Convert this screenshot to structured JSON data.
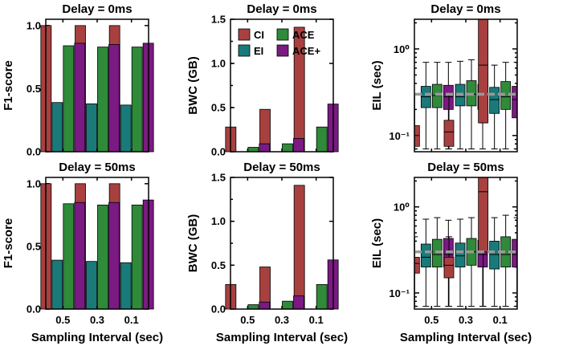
{
  "colors": {
    "CI": "#a84040",
    "EI": "#1a7a7a",
    "ACE": "#2f8a3a",
    "ACE+": "#7a1a82",
    "threshold": "#999999"
  },
  "legend": [
    "CI",
    "EI",
    "ACE",
    "ACE+"
  ],
  "chart_data": [
    {
      "type": "bar",
      "title": "Delay = 0ms",
      "ylabel": "F1-score",
      "xlabel": "",
      "categories": [
        "0.5",
        "0.3",
        "0.1"
      ],
      "ylim": [
        0,
        1.05
      ],
      "yticks": [
        "0.0",
        "0.5",
        "1.0"
      ],
      "series": [
        {
          "name": "CI",
          "values": [
            1.0,
            1.0,
            1.0
          ]
        },
        {
          "name": "EI",
          "values": [
            0.39,
            0.38,
            0.37
          ]
        },
        {
          "name": "ACE",
          "values": [
            0.84,
            0.83,
            0.83
          ]
        },
        {
          "name": "ACE+",
          "values": [
            0.86,
            0.85,
            0.86
          ]
        }
      ]
    },
    {
      "type": "bar",
      "title": "Delay = 0ms",
      "ylabel": "BWC (GB)",
      "xlabel": "",
      "categories": [
        "0.5",
        "0.3",
        "0.1"
      ],
      "ylim": [
        0,
        1.5
      ],
      "yticks": [
        "0.0",
        "0.5",
        "1.0",
        "1.5"
      ],
      "series": [
        {
          "name": "CI",
          "values": [
            0.28,
            0.48,
            1.41
          ]
        },
        {
          "name": "EI",
          "values": [
            0.0,
            0.0,
            0.0
          ]
        },
        {
          "name": "ACE",
          "values": [
            0.05,
            0.09,
            0.28
          ]
        },
        {
          "name": "ACE+",
          "values": [
            0.09,
            0.15,
            0.54
          ]
        }
      ]
    },
    {
      "type": "box",
      "title": "Delay = 0ms",
      "ylabel": "EIL (sec)",
      "xlabel": "",
      "categories": [
        "0.5",
        "0.3",
        "0.1"
      ],
      "yscale": "log",
      "ylim": [
        0.065,
        2.2
      ],
      "yticks": [
        "10⁻¹",
        "10⁰"
      ],
      "threshold": 0.3,
      "groups": [
        [
          {
            "name": "CI",
            "whislo": 0.07,
            "q1": 0.075,
            "med": 0.1,
            "q3": 0.13,
            "whishi": 0.3
          },
          {
            "name": "EI",
            "whislo": 0.07,
            "q1": 0.21,
            "med": 0.28,
            "q3": 0.37,
            "whishi": 0.7
          },
          {
            "name": "ACE",
            "whislo": 0.07,
            "q1": 0.21,
            "med": 0.29,
            "q3": 0.39,
            "whishi": 0.7
          },
          {
            "name": "ACE+",
            "whislo": 0.07,
            "q1": 0.2,
            "med": 0.28,
            "q3": 0.38,
            "whishi": 0.7
          }
        ],
        [
          {
            "name": "CI",
            "whislo": 0.07,
            "q1": 0.075,
            "med": 0.11,
            "q3": 0.15,
            "whishi": 0.3
          },
          {
            "name": "EI",
            "whislo": 0.07,
            "q1": 0.22,
            "med": 0.28,
            "q3": 0.39,
            "whishi": 0.72
          },
          {
            "name": "ACE",
            "whislo": 0.07,
            "q1": 0.22,
            "med": 0.3,
            "q3": 0.43,
            "whishi": 0.75
          },
          {
            "name": "ACE+",
            "whislo": 0.07,
            "q1": 0.2,
            "med": 0.28,
            "q3": 0.39,
            "whishi": 0.7
          }
        ],
        [
          {
            "name": "CI",
            "whislo": 0.14,
            "q1": 0.14,
            "med": 0.65,
            "q3": 2.2,
            "whishi": 2.2
          },
          {
            "name": "EI",
            "whislo": 0.07,
            "q1": 0.18,
            "med": 0.26,
            "q3": 0.36,
            "whishi": 0.65
          },
          {
            "name": "ACE",
            "whislo": 0.07,
            "q1": 0.2,
            "med": 0.28,
            "q3": 0.42,
            "whishi": 0.7
          },
          {
            "name": "ACE+",
            "whislo": 0.07,
            "q1": 0.16,
            "med": 0.26,
            "q3": 0.37,
            "whishi": 0.7
          }
        ]
      ]
    },
    {
      "type": "bar",
      "title": "Delay = 50ms",
      "ylabel": "F1-score",
      "xlabel": "Sampling Interval (sec)",
      "categories": [
        "0.5",
        "0.3",
        "0.1"
      ],
      "ylim": [
        0,
        1.05
      ],
      "yticks": [
        "0.0",
        "0.5",
        "1.0"
      ],
      "series": [
        {
          "name": "CI",
          "values": [
            1.0,
            1.0,
            1.0
          ]
        },
        {
          "name": "EI",
          "values": [
            0.39,
            0.38,
            0.37
          ]
        },
        {
          "name": "ACE",
          "values": [
            0.84,
            0.83,
            0.83
          ]
        },
        {
          "name": "ACE+",
          "values": [
            0.85,
            0.85,
            0.87
          ]
        }
      ]
    },
    {
      "type": "bar",
      "title": "Delay = 50ms",
      "ylabel": "BWC (GB)",
      "xlabel": "Sampling Interval (sec)",
      "categories": [
        "0.5",
        "0.3",
        "0.1"
      ],
      "ylim": [
        0,
        1.5
      ],
      "yticks": [
        "0.0",
        "0.5",
        "1.0",
        "1.5"
      ],
      "series": [
        {
          "name": "CI",
          "values": [
            0.28,
            0.48,
            1.41
          ]
        },
        {
          "name": "EI",
          "values": [
            0.0,
            0.0,
            0.0
          ]
        },
        {
          "name": "ACE",
          "values": [
            0.05,
            0.09,
            0.28
          ]
        },
        {
          "name": "ACE+",
          "values": [
            0.08,
            0.15,
            0.56
          ]
        }
      ]
    },
    {
      "type": "box",
      "title": "Delay = 50ms",
      "ylabel": "EIL (sec)",
      "xlabel": "Sampling Interval (sec)",
      "categories": [
        "0.5",
        "0.3",
        "0.1"
      ],
      "yscale": "log",
      "ylim": [
        0.065,
        2.2
      ],
      "yticks": [
        "10⁻¹",
        "10⁰"
      ],
      "threshold": 0.3,
      "groups": [
        [
          {
            "name": "CI",
            "whislo": 0.07,
            "q1": 0.17,
            "med": 0.22,
            "q3": 0.26,
            "whishi": 0.45
          },
          {
            "name": "EI",
            "whislo": 0.07,
            "q1": 0.2,
            "med": 0.26,
            "q3": 0.37,
            "whishi": 0.72
          },
          {
            "name": "ACE",
            "whislo": 0.07,
            "q1": 0.2,
            "med": 0.28,
            "q3": 0.42,
            "whishi": 0.75
          },
          {
            "name": "ACE+",
            "whislo": 0.07,
            "q1": 0.2,
            "med": 0.28,
            "q3": 0.43,
            "whishi": 0.7
          }
        ],
        [
          {
            "name": "CI",
            "whislo": 0.07,
            "q1": 0.15,
            "med": 0.21,
            "q3": 0.26,
            "whishi": 0.45
          },
          {
            "name": "EI",
            "whislo": 0.07,
            "q1": 0.2,
            "med": 0.27,
            "q3": 0.38,
            "whishi": 0.72
          },
          {
            "name": "ACE",
            "whislo": 0.07,
            "q1": 0.21,
            "med": 0.3,
            "q3": 0.43,
            "whishi": 0.75
          },
          {
            "name": "ACE+",
            "whislo": 0.07,
            "q1": 0.2,
            "med": 0.28,
            "q3": 0.41,
            "whishi": 0.7
          }
        ],
        [
          {
            "name": "CI",
            "whislo": 0.07,
            "q1": 0.3,
            "med": 1.5,
            "q3": 2.2,
            "whishi": 2.2
          },
          {
            "name": "EI",
            "whislo": 0.07,
            "q1": 0.19,
            "med": 0.28,
            "q3": 0.4,
            "whishi": 0.75
          },
          {
            "name": "ACE",
            "whislo": 0.07,
            "q1": 0.2,
            "med": 0.28,
            "q3": 0.45,
            "whishi": 0.8
          },
          {
            "name": "ACE+",
            "whislo": 0.07,
            "q1": 0.2,
            "med": 0.28,
            "q3": 0.42,
            "whishi": 0.75
          }
        ]
      ]
    }
  ]
}
